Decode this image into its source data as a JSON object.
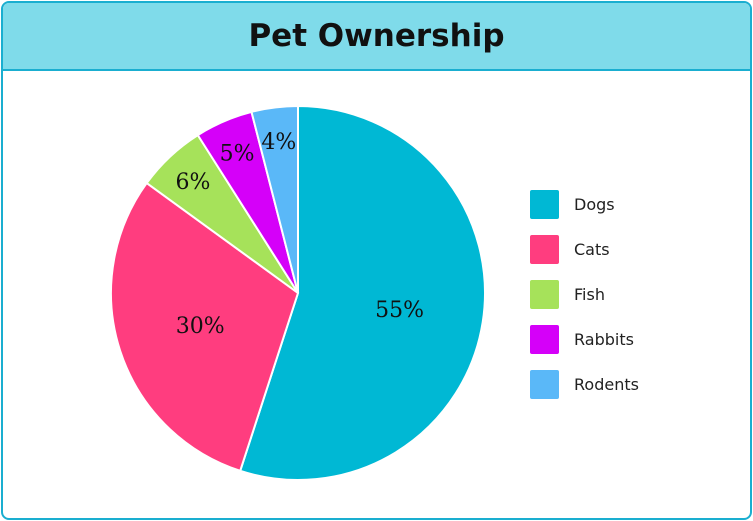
{
  "chart_data": {
    "type": "pie",
    "title": "Pet Ownership",
    "categories": [
      "Dogs",
      "Cats",
      "Fish",
      "Rabbits",
      "Rodents"
    ],
    "values": [
      55,
      30,
      6,
      5,
      4
    ],
    "labels": [
      "55%",
      "30%",
      "6%",
      "5%",
      "4%"
    ],
    "colors": [
      "#00b8d4",
      "#ff3d7f",
      "#a6e25a",
      "#d500f9",
      "#5ab8f8"
    ],
    "legend": "right"
  },
  "theme": {
    "header_bg": "#7fdbea",
    "border": "#1aaed0"
  }
}
